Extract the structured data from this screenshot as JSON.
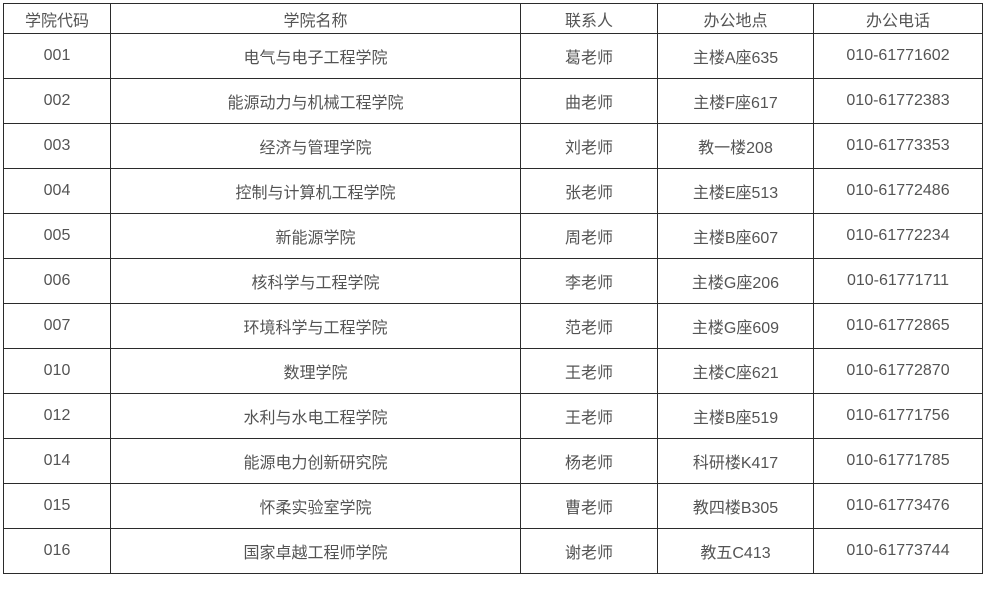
{
  "table": {
    "name": "college-contact-table",
    "columns": [
      "学院代码",
      "学院名称",
      "联系人",
      "办公地点",
      "办公电话"
    ],
    "rows": [
      [
        "001",
        "电气与电子工程学院",
        "葛老师",
        "主楼A座635",
        "010-61771602"
      ],
      [
        "002",
        "能源动力与机械工程学院",
        "曲老师",
        "主楼F座617",
        "010-61772383"
      ],
      [
        "003",
        "经济与管理学院",
        "刘老师",
        "教一楼208",
        "010-61773353"
      ],
      [
        "004",
        "控制与计算机工程学院",
        "张老师",
        "主楼E座513",
        "010-61772486"
      ],
      [
        "005",
        "新能源学院",
        "周老师",
        "主楼B座607",
        "010-61772234"
      ],
      [
        "006",
        "核科学与工程学院",
        "李老师",
        "主楼G座206",
        "010-61771711"
      ],
      [
        "007",
        "环境科学与工程学院",
        "范老师",
        "主楼G座609",
        "010-61772865"
      ],
      [
        "010",
        "数理学院",
        "王老师",
        "主楼C座621",
        "010-61772870"
      ],
      [
        "012",
        "水利与水电工程学院",
        "王老师",
        "主楼B座519",
        "010-61771756"
      ],
      [
        "014",
        "能源电力创新研究院",
        "杨老师",
        "科研楼K417",
        "010-61771785"
      ],
      [
        "015",
        "怀柔实验室学院",
        "曹老师",
        "教四楼B305",
        "010-61773476"
      ],
      [
        "016",
        "国家卓越工程师学院",
        "谢老师",
        "教五C413",
        "010-61773744"
      ]
    ],
    "colors": {
      "text": "#545454",
      "border": "#2b2b2b",
      "background": "#ffffff"
    }
  }
}
